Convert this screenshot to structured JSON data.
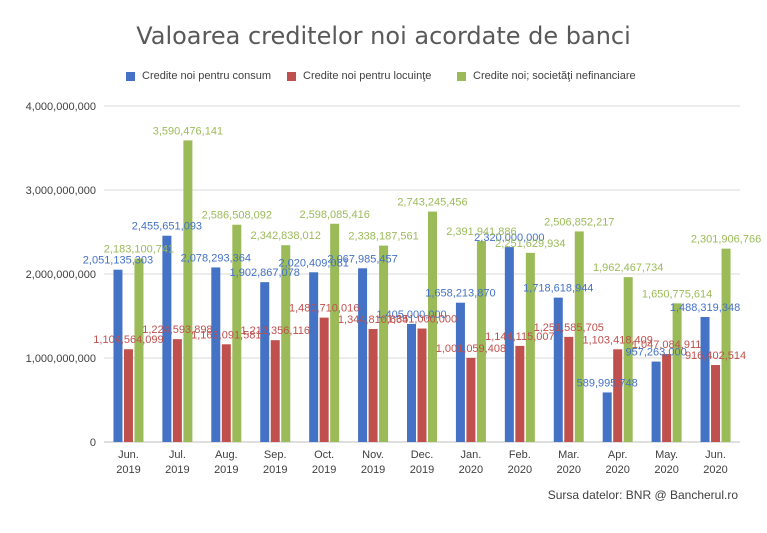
{
  "chart_data": {
    "type": "bar",
    "title": "Valoarea creditelor noi acordate de banci",
    "source_note": "Sursa datelor: BNR @ Bancherul.ro",
    "categories": [
      [
        "Jun.",
        "2019"
      ],
      [
        "Jul.",
        "2019"
      ],
      [
        "Aug.",
        "2019"
      ],
      [
        "Sep.",
        "2019"
      ],
      [
        "Oct.",
        "2019"
      ],
      [
        "Nov.",
        "2019"
      ],
      [
        "Dec.",
        "2019"
      ],
      [
        "Jan.",
        "2020"
      ],
      [
        "Feb.",
        "2020"
      ],
      [
        "Mar.",
        "2020"
      ],
      [
        "Apr.",
        "2020"
      ],
      [
        "May.",
        "2020"
      ],
      [
        "Jun.",
        "2020"
      ]
    ],
    "ylim": [
      0,
      4000000000
    ],
    "yticks": [
      0,
      1000000000,
      2000000000,
      3000000000,
      4000000000
    ],
    "ytick_labels": [
      "0",
      "1,000,000,000",
      "2,000,000,000",
      "3,000,000,000",
      "4,000,000,000"
    ],
    "grid": true,
    "legend_position": "top",
    "series": [
      {
        "name": "Credite noi pentru consum",
        "color": "#4472c4",
        "label_color": "#4472c4",
        "values": [
          2051135303,
          2455651093,
          2078293364,
          1902867078,
          2020409081,
          2067985457,
          1405000000,
          1658213870,
          2320000000,
          1718618944,
          589995748,
          957263000,
          1488319348
        ],
        "labels": [
          "2,051,135,303",
          "2,455,651,093",
          "2,078,293,364",
          "1,902,867,078",
          "2,020,409,081",
          "2,067,985,457",
          "1,405,000,000",
          "1,658,213,870",
          "2,320,000,000",
          "1,718,618,944",
          "589,995,748",
          "957,263,000",
          "1,488,319,348"
        ]
      },
      {
        "name": "Credite noi pentru locuinţe",
        "color": "#c0504d",
        "label_color": "#c0504d",
        "values": [
          1104564099,
          1224593898,
          1163091581,
          1212356116,
          1480710016,
          1344810664,
          1351000000,
          1001059408,
          1144115007,
          1251585705,
          1103418409,
          1047084911,
          916402514
        ],
        "labels": [
          "1,104,564,099",
          "1,224,593,898",
          "1,163,091,581",
          "1,212,356,116",
          "1,480,710,016",
          "1,344,810,664",
          "1,351,000,000",
          "1,001,059,408",
          "1,144,115,007",
          "1,251,585,705",
          "1,103,418,409",
          "1,047,084,911",
          "916,402,514"
        ]
      },
      {
        "name": "Credite noi; societăţi nefinanciare",
        "color": "#9bbb59",
        "label_color": "#9bbb59",
        "values": [
          2183100741,
          3590476141,
          2586508092,
          2342838012,
          2598085416,
          2338187561,
          2743245456,
          2391941886,
          2251629934,
          2506852217,
          1962467734,
          1650775614,
          2301906766
        ],
        "labels": [
          "2,183,100,741",
          "3,590,476,141",
          "2,586,508,092",
          "2,342,838,012",
          "2,598,085,416",
          "2,338,187,561",
          "2,743,245,456",
          "2,391,941,886",
          "2,251,629,934",
          "2,506,852,217",
          "1,962,467,734",
          "1,650,775,614",
          "2,301,906,766"
        ]
      }
    ]
  }
}
